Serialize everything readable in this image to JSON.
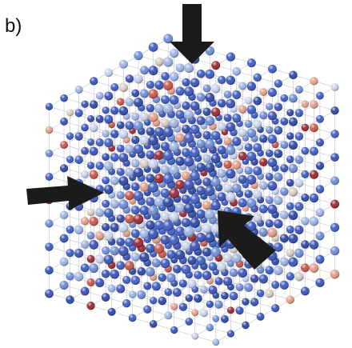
{
  "panel_label": "b)"
}
